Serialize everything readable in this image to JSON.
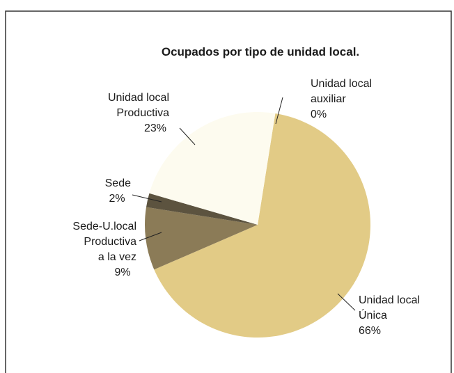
{
  "chart_data": {
    "type": "pie",
    "title": "Ocupados por tipo de unidad local.",
    "categories": [
      "Unidad local\nÚnica",
      "Sede-U.local\nProductiva\na la vez",
      "Sede",
      "Unidad local\nProductiva",
      "Unidad local\nauxiliar"
    ],
    "values": [
      66,
      9,
      2,
      23,
      0
    ],
    "value_labels": [
      "66%",
      "9%",
      "2%",
      "23%",
      "0%"
    ],
    "colors": [
      "#e2cb86",
      "#8b7b57",
      "#5c533f",
      "#fdfbef",
      "#ffffff"
    ]
  }
}
